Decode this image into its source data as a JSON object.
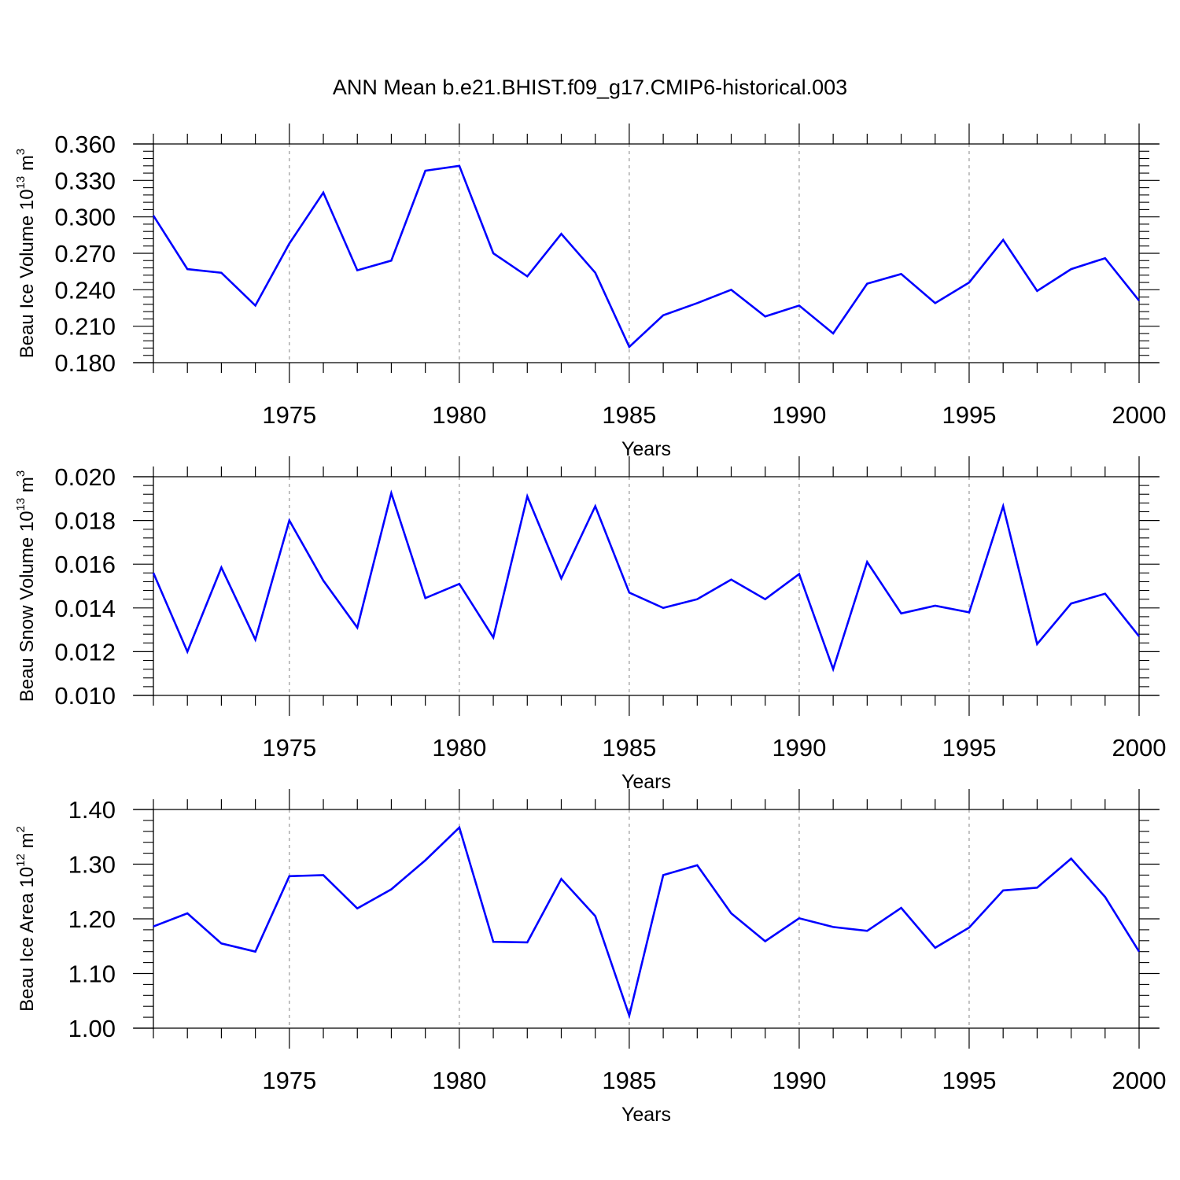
{
  "title": "ANN Mean b.e21.BHIST.f09_g17.CMIP6-historical.003",
  "colors": {
    "line": "#0000ff",
    "axis": "#000000",
    "grid": "#999999"
  },
  "chart_data": [
    {
      "type": "line",
      "ylabel": {
        "text": "Beau Ice Volume 10",
        "exponent": "13",
        "unit": " m",
        "unit_exp": "3"
      },
      "xlabel": "Years",
      "xlim": [
        1971,
        2000
      ],
      "x_ticks": [
        1975,
        1980,
        1985,
        1990,
        1995,
        2000
      ],
      "x_tick_labels": [
        "1975",
        "1980",
        "1985",
        "1990",
        "1995",
        "2000"
      ],
      "ylim": [
        0.18,
        0.36
      ],
      "y_ticks": [
        0.18,
        0.21,
        0.24,
        0.27,
        0.3,
        0.33,
        0.36
      ],
      "y_tick_labels": [
        "0.180",
        "0.210",
        "0.240",
        "0.270",
        "0.300",
        "0.330",
        "0.360"
      ],
      "grid": "x-major dashed",
      "x": [
        1971,
        1972,
        1973,
        1974,
        1975,
        1976,
        1977,
        1978,
        1979,
        1980,
        1981,
        1982,
        1983,
        1984,
        1985,
        1986,
        1987,
        1988,
        1989,
        1990,
        1991,
        1992,
        1993,
        1994,
        1995,
        1996,
        1997,
        1998,
        1999,
        2000
      ],
      "series": [
        {
          "name": "Beau Ice Volume",
          "values": [
            0.301,
            0.257,
            0.254,
            0.227,
            0.278,
            0.32,
            0.256,
            0.264,
            0.338,
            0.342,
            0.27,
            0.251,
            0.286,
            0.254,
            0.193,
            0.219,
            0.229,
            0.24,
            0.218,
            0.227,
            0.204,
            0.245,
            0.253,
            0.229,
            0.246,
            0.281,
            0.239,
            0.257,
            0.266,
            0.231
          ]
        }
      ]
    },
    {
      "type": "line",
      "ylabel": {
        "text": "Beau Snow Volume 10",
        "exponent": "13",
        "unit": " m",
        "unit_exp": "3"
      },
      "xlabel": "Years",
      "xlim": [
        1971,
        2000
      ],
      "x_ticks": [
        1975,
        1980,
        1985,
        1990,
        1995,
        2000
      ],
      "x_tick_labels": [
        "1975",
        "1980",
        "1985",
        "1990",
        "1995",
        "2000"
      ],
      "ylim": [
        0.01,
        0.02
      ],
      "y_ticks": [
        0.01,
        0.012,
        0.014,
        0.016,
        0.018,
        0.02
      ],
      "y_tick_labels": [
        "0.010",
        "0.012",
        "0.014",
        "0.016",
        "0.018",
        "0.020"
      ],
      "grid": "x-major dashed",
      "x": [
        1971,
        1972,
        1973,
        1974,
        1975,
        1976,
        1977,
        1978,
        1979,
        1980,
        1981,
        1982,
        1983,
        1984,
        1985,
        1986,
        1987,
        1988,
        1989,
        1990,
        1991,
        1992,
        1993,
        1994,
        1995,
        1996,
        1997,
        1998,
        1999,
        2000
      ],
      "series": [
        {
          "name": "Beau Snow Volume",
          "values": [
            0.0156,
            0.012,
            0.01585,
            0.01255,
            0.018,
            0.01525,
            0.0131,
            0.01925,
            0.01445,
            0.0151,
            0.01265,
            0.0191,
            0.01535,
            0.01865,
            0.0147,
            0.014,
            0.0144,
            0.0153,
            0.0144,
            0.01555,
            0.0112,
            0.0161,
            0.01375,
            0.0141,
            0.0138,
            0.01865,
            0.01235,
            0.0142,
            0.01465,
            0.0127
          ]
        }
      ]
    },
    {
      "type": "line",
      "ylabel": {
        "text": "Beau Ice Area 10",
        "exponent": "12",
        "unit": " m",
        "unit_exp": "2"
      },
      "xlabel": "Years",
      "xlim": [
        1971,
        2000
      ],
      "x_ticks": [
        1975,
        1980,
        1985,
        1990,
        1995,
        2000
      ],
      "x_tick_labels": [
        "1975",
        "1980",
        "1985",
        "1990",
        "1995",
        "2000"
      ],
      "ylim": [
        1.0,
        1.4
      ],
      "y_ticks": [
        1.0,
        1.1,
        1.2,
        1.3,
        1.4
      ],
      "y_tick_labels": [
        "1.00",
        "1.10",
        "1.20",
        "1.30",
        "1.40"
      ],
      "grid": "x-major dashed",
      "x": [
        1971,
        1972,
        1973,
        1974,
        1975,
        1976,
        1977,
        1978,
        1979,
        1980,
        1981,
        1982,
        1983,
        1984,
        1985,
        1986,
        1987,
        1988,
        1989,
        1990,
        1991,
        1992,
        1993,
        1994,
        1995,
        1996,
        1997,
        1998,
        1999,
        2000
      ],
      "series": [
        {
          "name": "Beau Ice Area",
          "values": [
            1.186,
            1.21,
            1.155,
            1.14,
            1.278,
            1.28,
            1.219,
            1.254,
            1.307,
            1.367,
            1.158,
            1.157,
            1.273,
            1.205,
            1.023,
            1.28,
            1.298,
            1.21,
            1.159,
            1.201,
            1.185,
            1.178,
            1.22,
            1.147,
            1.184,
            1.252,
            1.257,
            1.31,
            1.24,
            1.14
          ]
        }
      ]
    }
  ]
}
